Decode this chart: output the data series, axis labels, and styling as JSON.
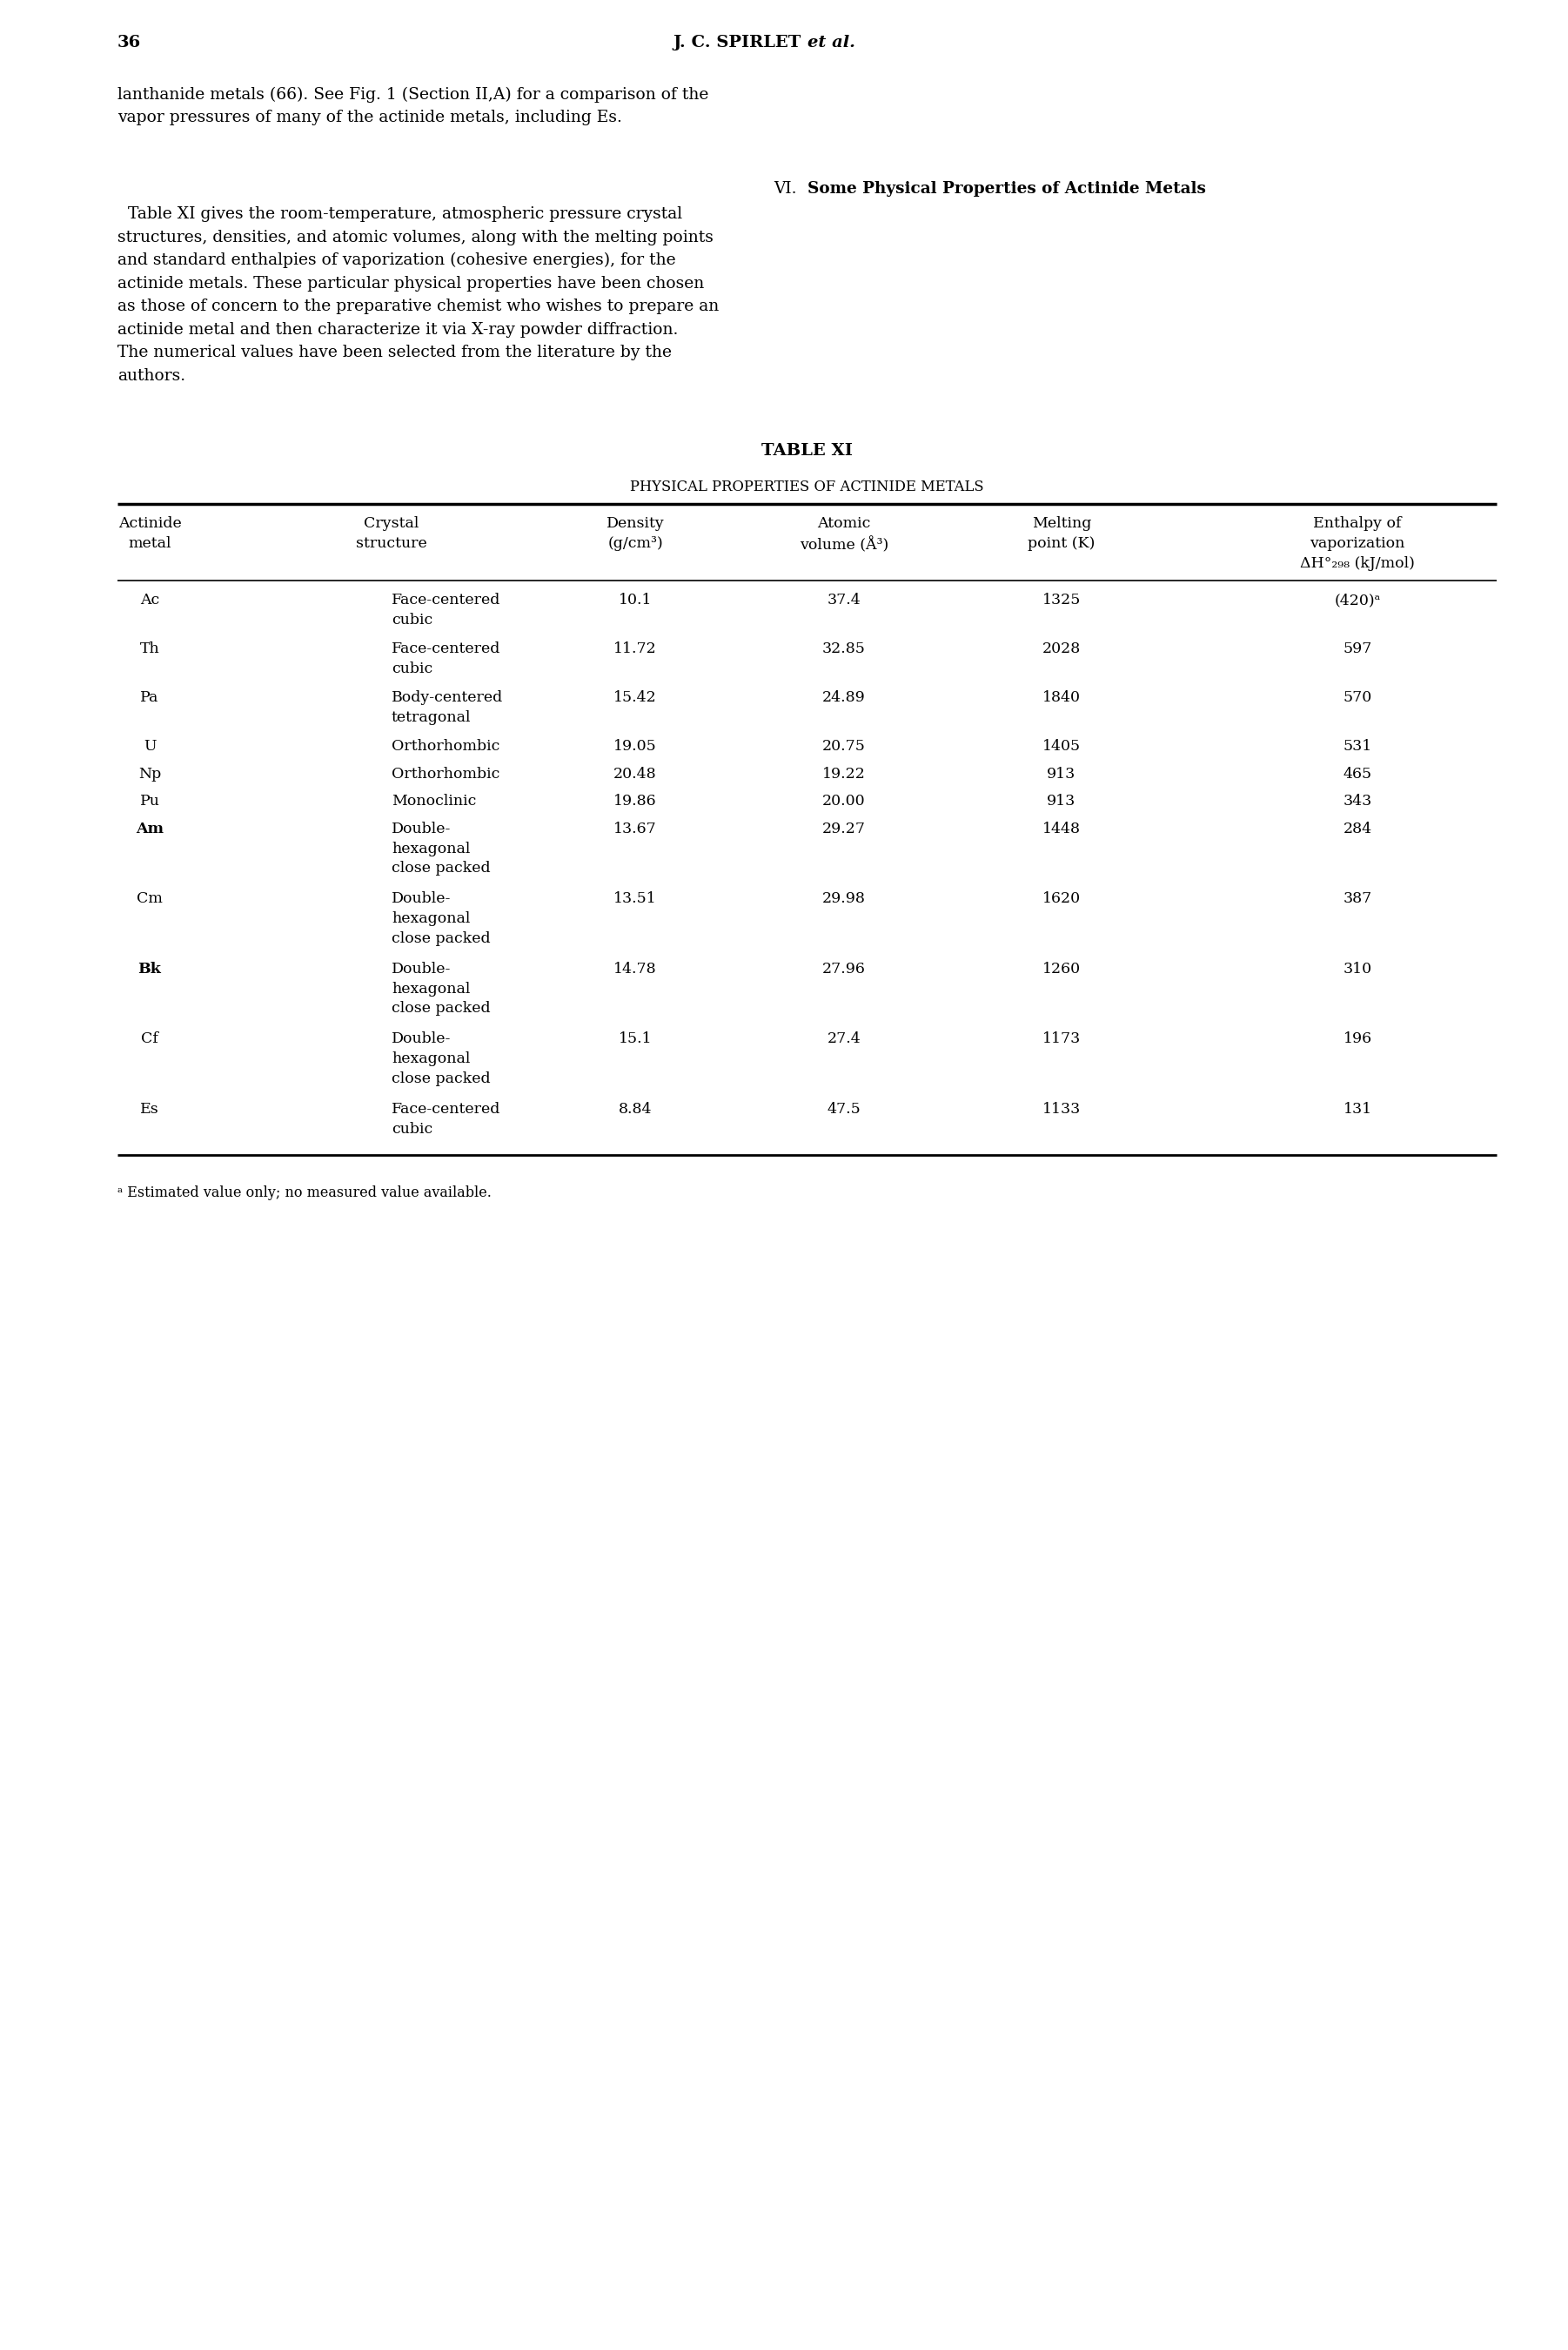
{
  "page_number": "36",
  "header_bold": "J. C. SPIRLET ",
  "header_italic": "et al.",
  "intro_lines": [
    "lanthanide metals (66). See Fig. 1 (Section II,A) for a comparison of the",
    "vapor pressures of many of the actinide metals, including Es."
  ],
  "section_heading_normal": "VI.  ",
  "section_heading_bold": "Some Physical Properties of Actinide Metals",
  "body_lines": [
    "  Table XI gives the room-temperature, atmospheric pressure crystal",
    "structures, densities, and atomic volumes, along with the melting points",
    "and standard enthalpies of vaporization (cohesive energies), for the",
    "actinide metals. These particular physical properties have been chosen",
    "as those of concern to the preparative chemist who wishes to prepare an",
    "actinide metal and then characterize it via X-ray powder diffraction.",
    "The numerical values have been selected from the literature by the",
    "authors."
  ],
  "table_title": "TABLE XI",
  "table_subtitle": "Physical Properties of Actinide Metals",
  "col_headers": [
    "Actinide\nmetal",
    "Crystal\nstructure",
    "Density\n(g/cm³)",
    "Atomic\nvolume (Å³)",
    "Melting\npoint (K)",
    "Enthalpy of\nvaporization\nΔH°₂₉₈ (kJ/mol)"
  ],
  "rows": [
    {
      "metal": "Ac",
      "structure": "Face-centered\ncubic",
      "density": "10.1",
      "vol": "37.4",
      "mp": "1325",
      "dH": "(420)ᵃ"
    },
    {
      "metal": "Th",
      "structure": "Face-centered\ncubic",
      "density": "11.72",
      "vol": "32.85",
      "mp": "2028",
      "dH": "597"
    },
    {
      "metal": "Pa",
      "structure": "Body-centered\ntetragonal",
      "density": "15.42",
      "vol": "24.89",
      "mp": "1840",
      "dH": "570"
    },
    {
      "metal": "U",
      "structure": "Orthorhombic",
      "density": "19.05",
      "vol": "20.75",
      "mp": "1405",
      "dH": "531"
    },
    {
      "metal": "Np",
      "structure": "Orthorhombic",
      "density": "20.48",
      "vol": "19.22",
      "mp": "913",
      "dH": "465"
    },
    {
      "metal": "Pu",
      "structure": "Monoclinic",
      "density": "19.86",
      "vol": "20.00",
      "mp": "913",
      "dH": "343"
    },
    {
      "metal": "Am",
      "structure": "Double-\nhexagonal\nclose packed",
      "density": "13.67",
      "vol": "29.27",
      "mp": "1448",
      "dH": "284"
    },
    {
      "metal": "Cm",
      "structure": "Double-\nhexagonal\nclose packed",
      "density": "13.51",
      "vol": "29.98",
      "mp": "1620",
      "dH": "387"
    },
    {
      "metal": "Bk",
      "structure": "Double-\nhexagonal\nclose packed",
      "density": "14.78",
      "vol": "27.96",
      "mp": "1260",
      "dH": "310"
    },
    {
      "metal": "Cf",
      "structure": "Double-\nhexagonal\nclose packed",
      "density": "15.1",
      "vol": "27.4",
      "mp": "1173",
      "dH": "196"
    },
    {
      "metal": "Es",
      "structure": "Face-centered\ncubic",
      "density": "8.84",
      "vol": "47.5",
      "mp": "1133",
      "dH": "131"
    }
  ],
  "footnote": "ᵃ Estimated value only; no measured value available.",
  "bg_color": "#ffffff",
  "fg_color": "#000000",
  "lm": 1.35,
  "rm": 17.2,
  "fs_body": 13.5,
  "fs_table": 12.5,
  "fs_title": 14.0,
  "lh_body": 0.265,
  "lh_table": 0.245
}
